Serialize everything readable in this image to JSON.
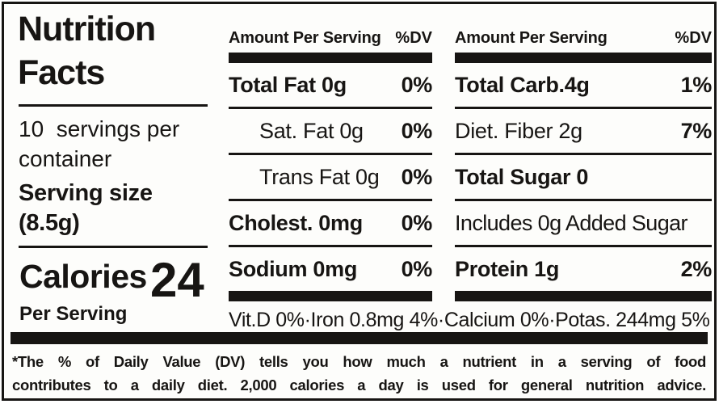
{
  "panel": {
    "title": "Nutrition Facts",
    "servings_per_container": "10  servings per container",
    "serving_size": {
      "label": "Serving size",
      "value": "(8.5g)"
    },
    "calories": {
      "label": "Calories",
      "value": "24",
      "per": "Per Serving"
    }
  },
  "column_headers": {
    "amount": "Amount Per Serving",
    "dv": "%DV"
  },
  "nutrients": {
    "middle": [
      {
        "label": "Total Fat 0g",
        "dv": "0%"
      },
      {
        "label": "Sat. Fat 0g",
        "dv": "0%"
      },
      {
        "label": "Trans Fat 0g",
        "dv": "0%"
      },
      {
        "label": "Cholest. 0mg",
        "dv": "0%"
      },
      {
        "label": "Sodium 0mg",
        "dv": "0%"
      }
    ],
    "right": [
      {
        "label": "Total Carb.4g",
        "dv": "1%"
      },
      {
        "label": "Diet. Fiber 2g",
        "dv": "7%"
      },
      {
        "label": "Total Sugar 0",
        "dv": ""
      },
      {
        "label": "Includes 0g Added Sugar",
        "dv": ""
      },
      {
        "label": "Protein 1g",
        "dv": "2%"
      }
    ]
  },
  "micronutrients": "Vit.D 0%·Iron 0.8mg 4%·Calcium 0%·Potas. 244mg 5%",
  "footnote": {
    "line1": "*The % of Daily Value (DV) tells you how much a nutrient in a serving of food",
    "line2": "contributes to a daily diet. 2,000 calories a day is used for general nutrition advice."
  },
  "colors": {
    "ink": "#171513",
    "paper": "#fdfdfb"
  }
}
